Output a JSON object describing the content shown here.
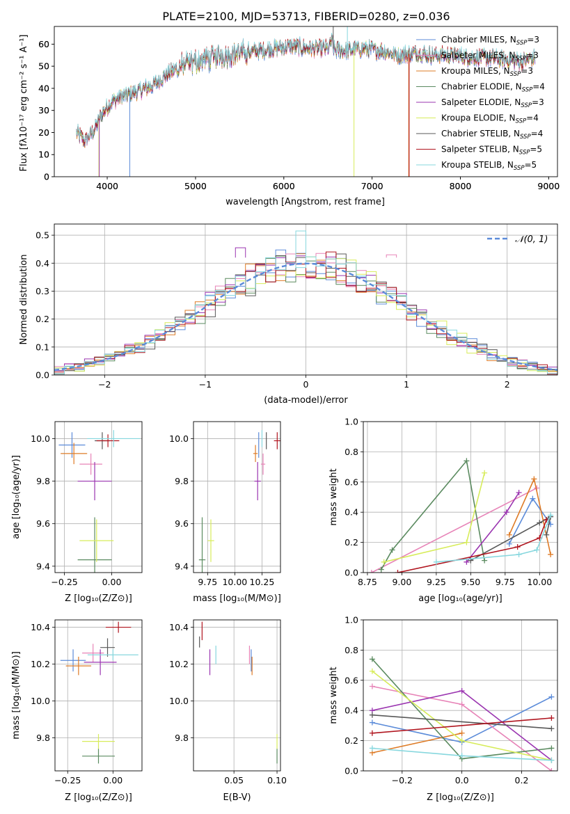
{
  "figure_title": "PLATE=2100, MJD=53713, FIBERID=0280, z=0.036",
  "colors": {
    "Chabrier MILES": "#5b8bd9",
    "Salpeter MILES": "#e783b7",
    "Kroupa MILES": "#de7b26",
    "Chabrier ELODIE": "#5a8a5f",
    "Salpeter ELODIE": "#9a34b0",
    "Kroupa ELODIE": "#d7ec5a",
    "Chabrier STELIB": "#585858",
    "Salpeter STELIB": "#b0141e",
    "Kroupa STELIB": "#86d7de"
  },
  "chart_data": [
    {
      "id": "spectrum",
      "type": "line",
      "xlabel": "wavelength [Angstrom, rest frame]",
      "ylabel": "Flux [fλ10⁻¹⁷ erg cm⁻² s⁻¹ A⁻¹]",
      "xlim": [
        3400,
        9100
      ],
      "ylim": [
        0,
        68
      ],
      "xticks": [
        4000,
        5000,
        6000,
        7000,
        8000,
        9000
      ],
      "yticks": [
        0,
        10,
        20,
        30,
        40,
        50,
        60
      ],
      "grid": false,
      "legend_position": "top-right",
      "continuum": {
        "x": [
          3650,
          3750,
          3850,
          3950,
          4050,
          4150,
          4300,
          4500,
          4700,
          4900,
          5100,
          5300,
          5500,
          5700,
          5900,
          6100,
          6300,
          6500,
          6700,
          6900,
          7100,
          7300,
          7500,
          7700,
          7900,
          8100,
          8300,
          8500,
          8700,
          8850
        ],
        "y": [
          20,
          16,
          21,
          29,
          34,
          36,
          38,
          41,
          47,
          51,
          53,
          55,
          56,
          57,
          58,
          59,
          58,
          58,
          57,
          58,
          57,
          55,
          56,
          55,
          55,
          54,
          54,
          53,
          52,
          54
        ]
      },
      "dips": [
        {
          "series": "Kroupa ELODIE",
          "x": 3905,
          "y": 0
        },
        {
          "series": "Salpeter ELODIE",
          "x": 3910,
          "y": 0
        },
        {
          "series": "Chabrier MILES",
          "x": 4255,
          "y": 0
        },
        {
          "series": "Kroupa ELODIE",
          "x": 6795,
          "y": 0
        },
        {
          "series": "Kroupa MILES",
          "x": 7415,
          "y": 0
        },
        {
          "series": "Salpeter STELIB",
          "x": 7420,
          "y": 0
        }
      ],
      "series": [
        {
          "name": "Chabrier MILES, N_SSP=3",
          "color_key": "Chabrier MILES",
          "nssp": "3"
        },
        {
          "name": "Salpeter MILES, N_SSP=3",
          "color_key": "Salpeter MILES",
          "nssp": "3"
        },
        {
          "name": "Kroupa MILES, N_SSP=3",
          "color_key": "Kroupa MILES",
          "nssp": "3"
        },
        {
          "name": "Chabrier ELODIE, N_SSP=4",
          "color_key": "Chabrier ELODIE",
          "nssp": "4"
        },
        {
          "name": "Salpeter ELODIE, N_SSP=3",
          "color_key": "Salpeter ELODIE",
          "nssp": "3"
        },
        {
          "name": "Kroupa ELODIE, N_SSP=4",
          "color_key": "Kroupa ELODIE",
          "nssp": "4"
        },
        {
          "name": "Chabrier STELIB, N_SSP=4",
          "color_key": "Chabrier STELIB",
          "nssp": "4"
        },
        {
          "name": "Salpeter STELIB, N_SSP=5",
          "color_key": "Salpeter STELIB",
          "nssp": "5"
        },
        {
          "name": "Kroupa STELIB, N_SSP=5",
          "color_key": "Kroupa STELIB",
          "nssp": "5"
        }
      ],
      "legend_labels": [
        {
          "base": "Chabrier MILES, N",
          "sub": "SSP",
          "tail": "=3"
        },
        {
          "base": "Salpeter MILES, N",
          "sub": "SSP",
          "tail": "=3"
        },
        {
          "base": "Kroupa MILES, N",
          "sub": "SSP",
          "tail": "=3"
        },
        {
          "base": "Chabrier ELODIE, N",
          "sub": "SSP",
          "tail": "=4"
        },
        {
          "base": "Salpeter ELODIE, N",
          "sub": "SSP",
          "tail": "=3"
        },
        {
          "base": "Kroupa ELODIE, N",
          "sub": "SSP",
          "tail": "=4"
        },
        {
          "base": "Chabrier STELIB, N",
          "sub": "SSP",
          "tail": "=4"
        },
        {
          "base": "Salpeter STELIB, N",
          "sub": "SSP",
          "tail": "=5"
        },
        {
          "base": "Kroupa STELIB, N",
          "sub": "SSP",
          "tail": "=5"
        }
      ]
    },
    {
      "id": "residuals",
      "type": "line",
      "xlabel": "(data-model)/error",
      "ylabel": "Normed distribution",
      "xlim": [
        -2.5,
        2.5
      ],
      "ylim": [
        0,
        0.54
      ],
      "xticks": [
        -2,
        -1,
        0,
        1,
        2
      ],
      "xtick_labels": [
        "−2",
        "−1",
        "0",
        "1",
        "2"
      ],
      "yticks": [
        0.0,
        0.1,
        0.2,
        0.3,
        0.4,
        0.5
      ],
      "ytick_labels": [
        "0.0",
        "0.1",
        "0.2",
        "0.3",
        "0.4",
        "0.5"
      ],
      "grid": true,
      "legend_position": "top-right",
      "legend": "𝒩(0, 1)",
      "gaussian": {
        "mean": 0,
        "sigma": 1,
        "color": "#5b8bd9",
        "style": "dashed"
      },
      "histogram_bin_width": 0.1,
      "histograms": {
        "series": [
          "Chabrier MILES",
          "Salpeter MILES",
          "Kroupa MILES",
          "Chabrier ELODIE",
          "Salpeter ELODIE",
          "Kroupa ELODIE",
          "Chabrier STELIB",
          "Salpeter STELIB",
          "Kroupa STELIB"
        ],
        "highlights": [
          {
            "series": "Kroupa STELIB",
            "x": -0.05,
            "y": 0.515
          },
          {
            "series": "Salpeter ELODIE",
            "x": -0.65,
            "y": 0.455
          },
          {
            "series": "Salpeter MILES",
            "x": 0.85,
            "y": 0.43
          },
          {
            "series": "Salpeter STELIB",
            "x": 0.25,
            "y": 0.44
          }
        ]
      }
    },
    {
      "id": "age_vs_Z",
      "type": "scatter",
      "xlabel": "Z [log₁₀(Z/Z⊙)]",
      "ylabel": "age  [log₁₀(age/yr)]",
      "xlim": [
        -0.3,
        0.16
      ],
      "ylim": [
        9.37,
        10.08
      ],
      "xticks": [
        -0.25,
        0.0
      ],
      "xtick_labels": [
        "−0.25",
        "0.00"
      ],
      "yticks": [
        9.4,
        9.6,
        9.8,
        10.0
      ],
      "ytick_labels": [
        "9.4",
        "9.6",
        "9.8",
        "10.0"
      ],
      "grid": true,
      "points": [
        {
          "series": "Chabrier MILES",
          "x": -0.21,
          "y": 9.97,
          "xerr": 0.07,
          "yerr": 0.06
        },
        {
          "series": "Salpeter MILES",
          "x": -0.11,
          "y": 9.88,
          "xerr": 0.06,
          "yerr": 0.05
        },
        {
          "series": "Kroupa MILES",
          "x": -0.2,
          "y": 9.93,
          "xerr": 0.07,
          "yerr": 0.05
        },
        {
          "series": "Chabrier ELODIE",
          "x": -0.09,
          "y": 9.43,
          "xerr": 0.09,
          "yerr": 0.2
        },
        {
          "series": "Salpeter ELODIE",
          "x": -0.09,
          "y": 9.8,
          "xerr": 0.09,
          "yerr": 0.09
        },
        {
          "series": "Kroupa ELODIE",
          "x": -0.08,
          "y": 9.52,
          "xerr": 0.09,
          "yerr": 0.1
        },
        {
          "series": "Chabrier STELIB",
          "x": -0.05,
          "y": 9.99,
          "xerr": 0.04,
          "yerr": 0.04
        },
        {
          "series": "Salpeter STELIB",
          "x": -0.02,
          "y": 9.99,
          "xerr": 0.06,
          "yerr": 0.03
        },
        {
          "series": "Kroupa STELIB",
          "x": 0.01,
          "y": 10.0,
          "xerr": 0.14,
          "yerr": 0.04
        }
      ]
    },
    {
      "id": "age_vs_mass",
      "type": "scatter",
      "xlabel": "mass [log₁₀(M/M⊙)]",
      "ylabel": "",
      "xlim": [
        9.62,
        10.42
      ],
      "ylim": [
        9.37,
        10.08
      ],
      "xticks": [
        9.75,
        10.0,
        10.25
      ],
      "xtick_labels": [
        "9.75",
        "10.00",
        "10.25"
      ],
      "yticks": [
        9.4,
        9.6,
        9.8,
        10.0
      ],
      "ytick_labels": [
        "9.4",
        "9.6",
        "9.8",
        "10.0"
      ],
      "grid": true,
      "points": [
        {
          "series": "Chabrier MILES",
          "x": 10.22,
          "y": 9.97,
          "xerr": 0.0,
          "yerr": 0.06
        },
        {
          "series": "Salpeter MILES",
          "x": 10.26,
          "y": 9.88,
          "xerr": 0.02,
          "yerr": 0.05
        },
        {
          "series": "Kroupa MILES",
          "x": 10.19,
          "y": 9.93,
          "xerr": 0.02,
          "yerr": 0.04
        },
        {
          "series": "Chabrier ELODIE",
          "x": 9.7,
          "y": 9.43,
          "xerr": 0.03,
          "yerr": 0.2
        },
        {
          "series": "Salpeter ELODIE",
          "x": 10.21,
          "y": 9.8,
          "xerr": 0.03,
          "yerr": 0.09
        },
        {
          "series": "Kroupa ELODIE",
          "x": 9.78,
          "y": 9.52,
          "xerr": 0.03,
          "yerr": 0.1
        },
        {
          "series": "Chabrier STELIB",
          "x": 10.29,
          "y": 9.99,
          "xerr": 0.0,
          "yerr": 0.04
        },
        {
          "series": "Salpeter STELIB",
          "x": 10.39,
          "y": 9.99,
          "xerr": 0.03,
          "yerr": 0.04
        },
        {
          "series": "Kroupa STELIB",
          "x": 10.25,
          "y": 10.0,
          "xerr": 0.0,
          "yerr": 0.04
        }
      ]
    },
    {
      "id": "weight_vs_age",
      "type": "line",
      "xlabel": "age  [log₁₀(age/yr)]",
      "ylabel": "mass weight",
      "xlim": [
        8.72,
        10.13
      ],
      "ylim": [
        0,
        1
      ],
      "xticks": [
        8.75,
        9.0,
        9.25,
        9.5,
        9.75,
        10.0
      ],
      "xtick_labels": [
        "8.75",
        "9.00",
        "9.25",
        "9.50",
        "9.75",
        "10.00"
      ],
      "yticks": [
        0,
        0.2,
        0.4,
        0.6,
        0.8,
        1.0
      ],
      "ytick_labels": [
        "0.0",
        "0.2",
        "0.4",
        "0.6",
        "0.8",
        "1.0"
      ],
      "grid": true,
      "series": [
        {
          "name": "Chabrier MILES",
          "x": [
            9.78,
            9.95,
            10.08
          ],
          "y": [
            0.19,
            0.49,
            0.32
          ]
        },
        {
          "name": "Salpeter MILES",
          "x": [
            8.78,
            9.98
          ],
          "y": [
            0.0,
            0.56
          ]
        },
        {
          "name": "Kroupa MILES",
          "x": [
            9.78,
            9.96,
            10.08
          ],
          "y": [
            0.25,
            0.62,
            0.12
          ]
        },
        {
          "name": "Chabrier ELODIE",
          "x": [
            8.85,
            8.93,
            9.47,
            9.6
          ],
          "y": [
            0.02,
            0.15,
            0.74,
            0.08
          ]
        },
        {
          "name": "Salpeter ELODIE",
          "x": [
            9.47,
            9.76,
            9.85
          ],
          "y": [
            0.07,
            0.4,
            0.53
          ]
        },
        {
          "name": "Kroupa ELODIE",
          "x": [
            8.87,
            9.47,
            9.6
          ],
          "y": [
            0.07,
            0.2,
            0.66
          ]
        },
        {
          "name": "Chabrier STELIB",
          "x": [
            9.5,
            10.0,
            10.08,
            10.05
          ],
          "y": [
            0.08,
            0.33,
            0.37,
            0.25
          ]
        },
        {
          "name": "Salpeter STELIB",
          "x": [
            8.97,
            9.84,
            10.0,
            10.05
          ],
          "y": [
            0.0,
            0.17,
            0.23,
            0.35
          ]
        },
        {
          "name": "Kroupa STELIB",
          "x": [
            9.25,
            9.85,
            9.98,
            10.08
          ],
          "y": [
            0.07,
            0.12,
            0.15,
            0.38
          ]
        }
      ]
    },
    {
      "id": "mass_vs_Z",
      "type": "scatter",
      "xlabel": "Z [log₁₀(Z/Z⊙)]",
      "ylabel": "mass [log₁₀(M/M⊙)]",
      "xlim": [
        -0.32,
        0.16
      ],
      "ylim": [
        9.62,
        10.44
      ],
      "xticks": [
        -0.25,
        0.0
      ],
      "xtick_labels": [
        "−0.25",
        "0.00"
      ],
      "yticks": [
        9.8,
        10.0,
        10.2,
        10.4
      ],
      "ytick_labels": [
        "9.8",
        "10.0",
        "10.2",
        "10.4"
      ],
      "grid": true,
      "points": [
        {
          "series": "Chabrier MILES",
          "x": -0.22,
          "y": 10.22,
          "xerr": 0.07,
          "yerr": 0.06
        },
        {
          "series": "Salpeter MILES",
          "x": -0.11,
          "y": 10.26,
          "xerr": 0.06,
          "yerr": 0.05
        },
        {
          "series": "Kroupa MILES",
          "x": -0.19,
          "y": 10.19,
          "xerr": 0.07,
          "yerr": 0.05
        },
        {
          "series": "Chabrier ELODIE",
          "x": -0.08,
          "y": 9.7,
          "xerr": 0.09,
          "yerr": 0.04
        },
        {
          "series": "Salpeter ELODIE",
          "x": -0.07,
          "y": 10.21,
          "xerr": 0.09,
          "yerr": 0.07
        },
        {
          "series": "Kroupa ELODIE",
          "x": -0.08,
          "y": 9.78,
          "xerr": 0.09,
          "yerr": 0.04
        },
        {
          "series": "Chabrier STELIB",
          "x": -0.03,
          "y": 10.29,
          "xerr": 0.04,
          "yerr": 0.05
        },
        {
          "series": "Salpeter STELIB",
          "x": 0.03,
          "y": 10.4,
          "xerr": 0.07,
          "yerr": 0.03
        },
        {
          "series": "Kroupa STELIB",
          "x": 0.0,
          "y": 10.25,
          "xerr": 0.14,
          "yerr": 0.03
        }
      ]
    },
    {
      "id": "mass_vs_ebv",
      "type": "scatter",
      "xlabel": "E(B-V)",
      "ylabel": "",
      "xlim": [
        0.003,
        0.104
      ],
      "ylim": [
        9.62,
        10.44
      ],
      "xticks": [
        0.05,
        0.1
      ],
      "xtick_labels": [
        "0.05",
        "0.10"
      ],
      "yticks": [
        9.8,
        10.0,
        10.2,
        10.4
      ],
      "ytick_labels": [
        "9.8",
        "10.0",
        "10.2",
        "10.4"
      ],
      "grid": true,
      "points": [
        {
          "series": "Chabrier MILES",
          "x": 0.07,
          "y": 10.22,
          "xerr": 0.0,
          "yerr": 0.06
        },
        {
          "series": "Salpeter MILES",
          "x": 0.068,
          "y": 10.25,
          "xerr": 0.0,
          "yerr": 0.05
        },
        {
          "series": "Kroupa MILES",
          "x": 0.071,
          "y": 10.19,
          "xerr": 0.0,
          "yerr": 0.05
        },
        {
          "series": "Chabrier ELODIE",
          "x": 0.1,
          "y": 9.7,
          "xerr": 0.0,
          "yerr": 0.04
        },
        {
          "series": "Salpeter ELODIE",
          "x": 0.022,
          "y": 10.21,
          "xerr": 0.0,
          "yerr": 0.07
        },
        {
          "series": "Kroupa ELODIE",
          "x": 0.1,
          "y": 9.78,
          "xerr": 0.0,
          "yerr": 0.04
        },
        {
          "series": "Chabrier STELIB",
          "x": 0.01,
          "y": 10.32,
          "xerr": 0.0,
          "yerr": 0.03
        },
        {
          "series": "Salpeter STELIB",
          "x": 0.013,
          "y": 10.38,
          "xerr": 0.0,
          "yerr": 0.05
        },
        {
          "series": "Kroupa STELIB",
          "x": 0.029,
          "y": 10.25,
          "xerr": 0.0,
          "yerr": 0.05
        }
      ]
    },
    {
      "id": "weight_vs_Z",
      "type": "line",
      "xlabel": "Z [log₁₀(Z/Z⊙)]",
      "ylabel": "mass weight",
      "xlim": [
        -0.33,
        0.32
      ],
      "ylim": [
        0,
        1
      ],
      "xticks": [
        -0.2,
        0.0,
        0.2
      ],
      "xtick_labels": [
        "−0.2",
        "0.0",
        "0.2"
      ],
      "yticks": [
        0,
        0.2,
        0.4,
        0.6,
        0.8,
        1.0
      ],
      "ytick_labels": [
        "0.0",
        "0.2",
        "0.4",
        "0.6",
        "0.8",
        "1.0"
      ],
      "grid": true,
      "series": [
        {
          "name": "Chabrier MILES",
          "x": [
            -0.3,
            0.0,
            0.3
          ],
          "y": [
            0.32,
            0.19,
            0.49
          ]
        },
        {
          "name": "Salpeter MILES",
          "x": [
            -0.3,
            0.0,
            0.3
          ],
          "y": [
            0.56,
            0.44,
            0.0
          ]
        },
        {
          "name": "Kroupa MILES",
          "x": [
            -0.3,
            0.0
          ],
          "y": [
            0.12,
            0.25
          ]
        },
        {
          "name": "Chabrier ELODIE",
          "x": [
            -0.3,
            0.0,
            0.3
          ],
          "y": [
            0.74,
            0.08,
            0.15
          ]
        },
        {
          "name": "Salpeter ELODIE",
          "x": [
            -0.3,
            0.0,
            0.3
          ],
          "y": [
            0.4,
            0.53,
            0.07
          ]
        },
        {
          "name": "Kroupa ELODIE",
          "x": [
            -0.3,
            0.0,
            0.3
          ],
          "y": [
            0.66,
            0.2,
            0.07
          ]
        },
        {
          "name": "Chabrier STELIB",
          "x": [
            -0.3,
            0.3
          ],
          "y": [
            0.37,
            0.28
          ]
        },
        {
          "name": "Salpeter STELIB",
          "x": [
            -0.3,
            0.3
          ],
          "y": [
            0.25,
            0.35
          ]
        },
        {
          "name": "Kroupa STELIB",
          "x": [
            -0.3,
            0.0,
            0.3
          ],
          "y": [
            0.15,
            0.1,
            0.07
          ]
        }
      ]
    }
  ]
}
